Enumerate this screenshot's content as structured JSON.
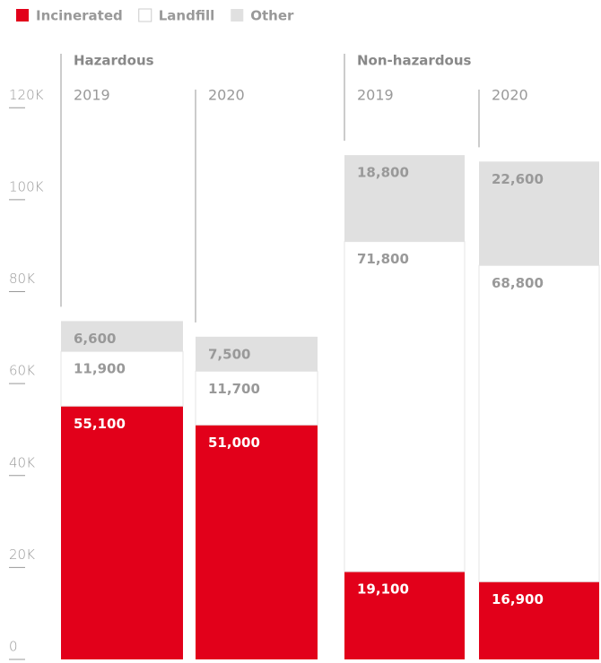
{
  "chart_data": {
    "type": "stacked_bar",
    "groups": [
      "Hazardous",
      "Non-hazardous"
    ],
    "categories": [
      "2019",
      "2020",
      "2019",
      "2020"
    ],
    "series": [
      {
        "name": "Incinerated",
        "color": "#e2001a",
        "values": [
          55100,
          51000,
          19100,
          16900
        ],
        "value_labels": [
          "55,100",
          "51,000",
          "19,100",
          "16,900"
        ]
      },
      {
        "name": "Landfill",
        "color": "#ffffff",
        "values": [
          11900,
          11700,
          71800,
          68800
        ],
        "value_labels": [
          "11,900",
          "11,700",
          "71,800",
          "68,800"
        ]
      },
      {
        "name": "Other",
        "color": "#e0e0e0",
        "values": [
          6600,
          7500,
          18800,
          22600
        ],
        "value_labels": [
          "6,600",
          "7,500",
          "18,800",
          "22,600"
        ]
      }
    ],
    "ylim": [
      0,
      130000
    ],
    "yticks": [
      0,
      {
        "value": 20000,
        "label": "20K"
      },
      {
        "value": 40000,
        "label": "40K"
      },
      {
        "value": 60000,
        "label": "60K"
      },
      {
        "value": 80000,
        "label": "80K"
      },
      {
        "value": 100000,
        "label": "100K"
      },
      {
        "value": 120000,
        "label": "120K"
      }
    ]
  }
}
